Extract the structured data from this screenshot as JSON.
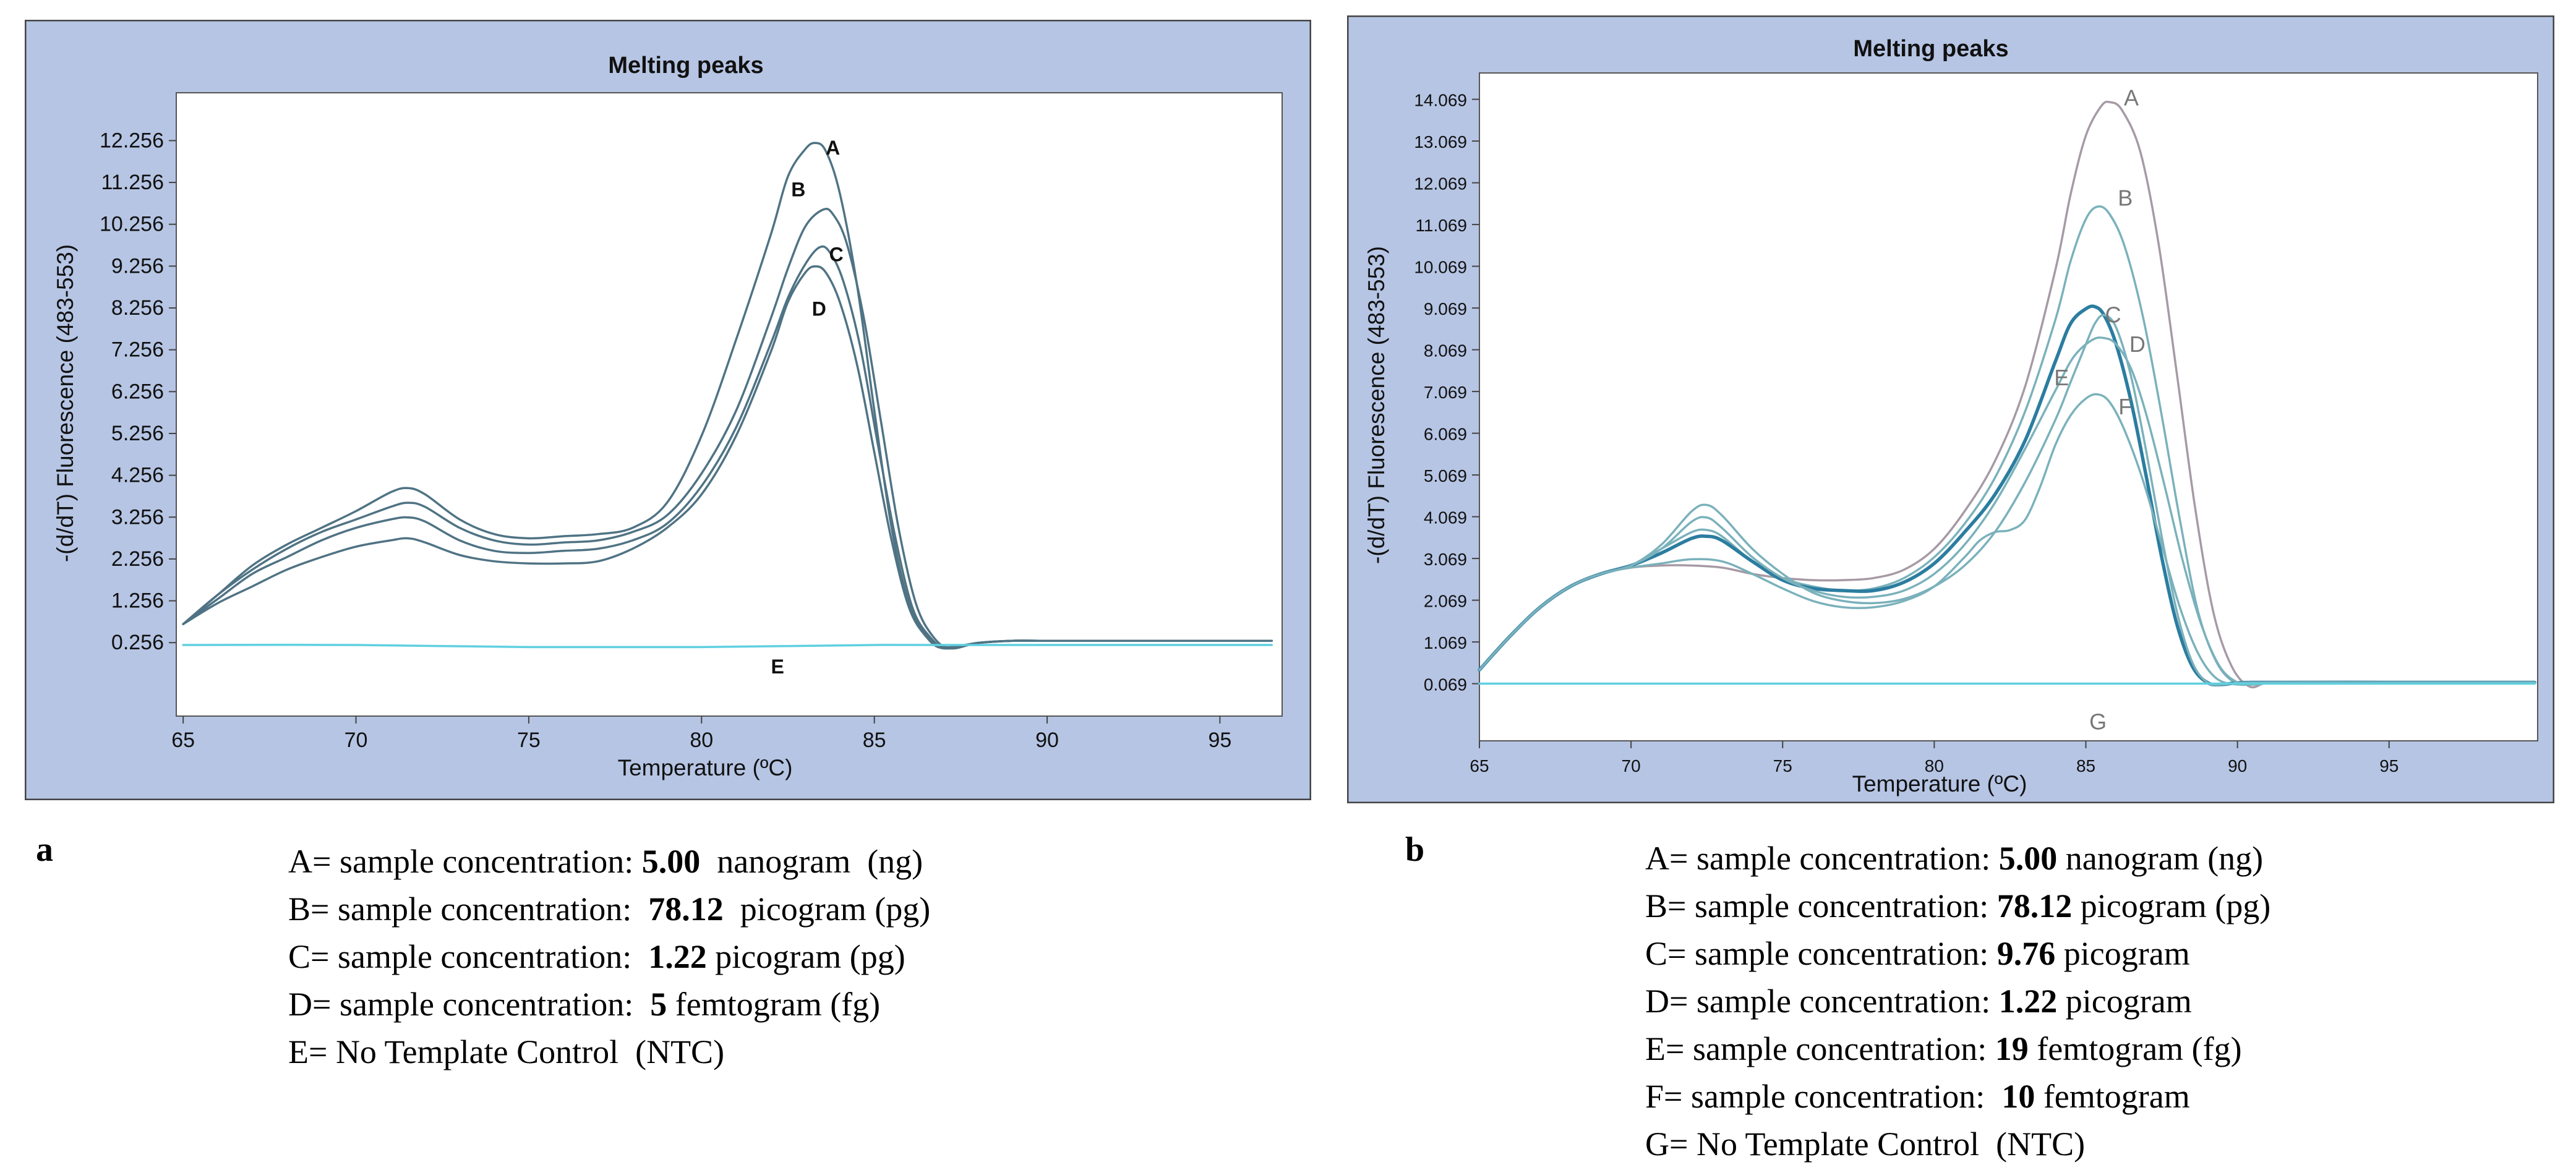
{
  "figure": {
    "panel_a_letter": "a",
    "panel_b_letter": "b"
  },
  "colors": {
    "panel_bg": "#b6c5e4",
    "plot_bg": "#ffffff",
    "curve_a": "#4f7384",
    "curve_ntc": "#5fd0e0",
    "curve_b_a": "#a69aa5",
    "curve_b": "#7ab1bb",
    "curve_b_dark": "#2b7da0"
  },
  "chart_data": [
    {
      "type": "line",
      "title": "Melting peaks",
      "xlabel": "Temperature (ºC)",
      "ylabel": "-(d/dT) Fluorescence (483-553)",
      "xlim": [
        64.8,
        96.8
      ],
      "ylim": [
        -1.5,
        13.4
      ],
      "xticks": [
        "65",
        "70",
        "75",
        "80",
        "85",
        "90",
        "95"
      ],
      "xtick_values": [
        65,
        70,
        75,
        80,
        85,
        90,
        95
      ],
      "yticks": [
        "0.256",
        "1.256",
        "2.256",
        "3.256",
        "4.256",
        "5.256",
        "6.256",
        "7.256",
        "8.256",
        "9.256",
        "10.256",
        "11.256",
        "12.256"
      ],
      "ytick_values": [
        0.256,
        1.256,
        2.256,
        3.256,
        4.256,
        5.256,
        6.256,
        7.256,
        8.256,
        9.256,
        10.256,
        11.256,
        12.256
      ],
      "series": [
        {
          "name": "A",
          "label_at": [
            83.8,
            12.1
          ],
          "color_key": "curve_a",
          "x": [
            65,
            66,
            67,
            68,
            69,
            70,
            71,
            71.5,
            72,
            73,
            74,
            75,
            76,
            77,
            78,
            79,
            80,
            81,
            82,
            82.5,
            83,
            83.3,
            83.6,
            84,
            84.5,
            85,
            85.5,
            86,
            86.5,
            87,
            88,
            89,
            90,
            92,
            95,
            96.5
          ],
          "y": [
            0.7,
            1.4,
            2.1,
            2.6,
            3.0,
            3.4,
            3.85,
            3.95,
            3.8,
            3.2,
            2.85,
            2.75,
            2.8,
            2.85,
            3.0,
            3.6,
            5.2,
            7.5,
            10.0,
            11.4,
            12.05,
            12.2,
            12.0,
            11.0,
            8.8,
            5.8,
            3.0,
            1.2,
            0.45,
            0.15,
            0.25,
            0.3,
            0.3,
            0.3,
            0.3,
            0.3
          ]
        },
        {
          "name": "B",
          "label_at": [
            82.8,
            11.1
          ],
          "color_key": "curve_a",
          "x": [
            65,
            66,
            67,
            68,
            69,
            70,
            71,
            71.5,
            72,
            73,
            74,
            75,
            76,
            77,
            78,
            79,
            80,
            81,
            82,
            82.5,
            83,
            83.5,
            83.8,
            84.2,
            84.7,
            85.2,
            85.7,
            86.2,
            86.7,
            87.2,
            88,
            89,
            90,
            92,
            95,
            96.5
          ],
          "y": [
            0.7,
            1.4,
            2.0,
            2.5,
            2.9,
            3.2,
            3.5,
            3.6,
            3.5,
            3.0,
            2.7,
            2.6,
            2.65,
            2.7,
            2.9,
            3.3,
            4.3,
            5.8,
            8.0,
            9.2,
            10.2,
            10.6,
            10.5,
            9.8,
            8.0,
            5.5,
            3.0,
            1.2,
            0.4,
            0.12,
            0.25,
            0.3,
            0.3,
            0.3,
            0.3,
            0.3
          ]
        },
        {
          "name": "C",
          "label_at": [
            83.9,
            9.55
          ],
          "color_key": "curve_a",
          "x": [
            65,
            66,
            67,
            68,
            69,
            70,
            71,
            71.5,
            72,
            73,
            74,
            75,
            76,
            77,
            78,
            79,
            80,
            81,
            82,
            82.5,
            83,
            83.4,
            83.7,
            84.1,
            84.6,
            85.1,
            85.6,
            86.1,
            86.6,
            87.1,
            88,
            89,
            90,
            92,
            95,
            96.5
          ],
          "y": [
            0.7,
            1.3,
            1.9,
            2.3,
            2.7,
            3.0,
            3.2,
            3.25,
            3.15,
            2.7,
            2.45,
            2.4,
            2.45,
            2.5,
            2.7,
            3.1,
            4.0,
            5.4,
            7.4,
            8.5,
            9.3,
            9.7,
            9.6,
            8.9,
            7.3,
            5.0,
            2.8,
            1.1,
            0.4,
            0.12,
            0.25,
            0.3,
            0.3,
            0.3,
            0.3,
            0.3
          ]
        },
        {
          "name": "D",
          "label_at": [
            83.4,
            8.25
          ],
          "color_key": "curve_a",
          "x": [
            65,
            66,
            67,
            68,
            69,
            70,
            71,
            71.5,
            72,
            73,
            74,
            75,
            76,
            77,
            78,
            79,
            80,
            81,
            82,
            82.5,
            83,
            83.3,
            83.6,
            84,
            84.5,
            85,
            85.5,
            86,
            86.5,
            87,
            88,
            89,
            90,
            92,
            95,
            96.5
          ],
          "y": [
            0.7,
            1.2,
            1.6,
            2.0,
            2.3,
            2.55,
            2.7,
            2.75,
            2.65,
            2.35,
            2.2,
            2.15,
            2.15,
            2.2,
            2.5,
            3.0,
            3.8,
            5.2,
            7.2,
            8.4,
            9.1,
            9.25,
            9.1,
            8.4,
            6.9,
            4.8,
            2.7,
            1.1,
            0.4,
            0.12,
            0.25,
            0.3,
            0.3,
            0.3,
            0.3,
            0.3
          ]
        },
        {
          "name": "E",
          "label_at": [
            82.2,
            -0.3
          ],
          "color_key": "curve_ntc",
          "x": [
            65,
            70,
            75,
            80,
            85,
            90,
            95,
            96.5
          ],
          "y": [
            0.2,
            0.2,
            0.15,
            0.15,
            0.2,
            0.2,
            0.2,
            0.2
          ]
        }
      ]
    },
    {
      "type": "line",
      "title": "Melting peaks",
      "xlabel": "Temperature (ºC)",
      "ylabel": "-(d/dT) Fluorescence (483-553)",
      "xlim": [
        65,
        99.9
      ],
      "ylim": [
        -1.3,
        14.7
      ],
      "xticks": [
        "65",
        "70",
        "75",
        "80",
        "85",
        "90",
        "95"
      ],
      "xtick_values": [
        65,
        70,
        75,
        80,
        85,
        90,
        95
      ],
      "yticks": [
        "0.069",
        "1.069",
        "2.069",
        "3.069",
        "4.069",
        "5.069",
        "6.069",
        "7.069",
        "8.069",
        "9.069",
        "10.069",
        "11.069",
        "12.069",
        "13.069",
        "14.069"
      ],
      "ytick_values": [
        0.069,
        1.069,
        2.069,
        3.069,
        4.069,
        5.069,
        6.069,
        7.069,
        8.069,
        9.069,
        10.069,
        11.069,
        12.069,
        13.069,
        14.069
      ],
      "series": [
        {
          "name": "A",
          "label_at": [
            86.5,
            14.1
          ],
          "color_key": "curve_b_a",
          "x": [
            65,
            66,
            67,
            68,
            69,
            70,
            71,
            72,
            73,
            74,
            75,
            76,
            77,
            78,
            79,
            80,
            81,
            82,
            83,
            84,
            84.5,
            85,
            85.5,
            85.8,
            86.2,
            86.8,
            87.4,
            88,
            88.6,
            89.2,
            89.8,
            90.4,
            91,
            92,
            95,
            99.8
          ],
          "y": [
            0.4,
            1.2,
            1.9,
            2.4,
            2.7,
            2.85,
            2.9,
            2.9,
            2.85,
            2.7,
            2.6,
            2.55,
            2.55,
            2.6,
            2.8,
            3.3,
            4.2,
            5.4,
            7.2,
            10.0,
            11.8,
            13.2,
            13.9,
            14.0,
            13.8,
            12.8,
            10.6,
            7.5,
            4.3,
            1.8,
            0.5,
            0.0,
            0.1,
            0.1,
            0.1,
            0.1
          ]
        },
        {
          "name": "B",
          "label_at": [
            86.3,
            11.7
          ],
          "color_key": "curve_b",
          "x": [
            65,
            66,
            67,
            68,
            69,
            70,
            71,
            72,
            72.5,
            73,
            74,
            75,
            76,
            77,
            78,
            79,
            80,
            81,
            82,
            83,
            84,
            84.5,
            85,
            85.4,
            85.8,
            86.3,
            86.9,
            87.5,
            88.1,
            88.7,
            89.3,
            89.9,
            90.5,
            91.5,
            95,
            99.8
          ],
          "y": [
            0.4,
            1.2,
            1.9,
            2.4,
            2.7,
            2.9,
            3.3,
            3.7,
            3.75,
            3.6,
            3.0,
            2.6,
            2.4,
            2.3,
            2.35,
            2.6,
            3.1,
            3.9,
            5.0,
            6.6,
            8.8,
            10.2,
            11.2,
            11.5,
            11.3,
            10.5,
            8.8,
            6.5,
            4.0,
            1.8,
            0.6,
            0.1,
            0.05,
            0.1,
            0.1,
            0.1
          ]
        },
        {
          "name": "C",
          "label_at": [
            85.9,
            8.9
          ],
          "color_key": "curve_b_dark",
          "x": [
            65,
            66,
            67,
            68,
            69,
            70,
            71,
            72,
            72.5,
            73,
            74,
            75,
            76,
            77,
            78,
            79,
            80,
            81,
            82,
            83,
            84,
            84.5,
            85,
            85.3,
            85.6,
            86,
            86.5,
            87,
            87.5,
            88,
            88.5,
            89,
            89.5,
            90.5,
            95,
            99.8
          ],
          "y": [
            0.4,
            1.2,
            1.9,
            2.4,
            2.7,
            2.9,
            3.2,
            3.55,
            3.6,
            3.5,
            3.0,
            2.55,
            2.35,
            2.3,
            2.3,
            2.5,
            2.95,
            3.7,
            4.6,
            5.9,
            7.8,
            8.7,
            9.05,
            9.1,
            8.9,
            8.2,
            6.8,
            5.0,
            3.1,
            1.5,
            0.5,
            0.1,
            0.05,
            0.1,
            0.1,
            0.1
          ]
        },
        {
          "name": "D",
          "label_at": [
            86.7,
            8.2
          ],
          "color_key": "curve_b",
          "x": [
            65,
            66,
            67,
            68,
            69,
            70,
            71,
            72,
            72.5,
            73,
            74,
            75,
            76,
            77,
            78,
            79,
            80,
            81,
            82,
            83,
            84,
            84.6,
            85.2,
            85.6,
            86,
            86.5,
            87,
            87.6,
            88.2,
            88.8,
            89.4,
            90,
            90.6,
            91.5,
            95,
            99.8
          ],
          "y": [
            0.4,
            1.2,
            1.9,
            2.4,
            2.7,
            2.9,
            3.3,
            3.95,
            4.05,
            3.8,
            3.1,
            2.6,
            2.3,
            2.15,
            2.15,
            2.3,
            2.7,
            3.4,
            4.4,
            5.7,
            7.1,
            7.9,
            8.3,
            8.35,
            8.2,
            7.6,
            6.5,
            4.8,
            3.0,
            1.5,
            0.5,
            0.1,
            0.05,
            0.1,
            0.1,
            0.1
          ]
        },
        {
          "name": "E",
          "label_at": [
            84.2,
            7.4
          ],
          "color_key": "curve_b",
          "x": [
            65,
            66,
            67,
            68,
            69,
            70,
            71,
            72,
            72.5,
            73,
            74,
            75,
            76,
            77,
            78,
            79,
            80,
            81,
            82,
            83,
            84,
            84.5,
            85,
            85.3,
            85.6,
            86,
            86.5,
            87,
            87.5,
            88,
            88.5,
            89,
            89.5,
            90.5,
            95,
            99.8
          ],
          "y": [
            0.4,
            1.2,
            1.9,
            2.4,
            2.7,
            2.9,
            3.4,
            4.2,
            4.35,
            4.1,
            3.3,
            2.7,
            2.25,
            2.05,
            2.0,
            2.1,
            2.4,
            2.9,
            3.7,
            4.9,
            6.4,
            7.3,
            8.2,
            8.7,
            8.9,
            8.6,
            7.4,
            5.6,
            3.6,
            1.8,
            0.6,
            0.1,
            0.05,
            0.1,
            0.1,
            0.1
          ]
        },
        {
          "name": "F",
          "label_at": [
            86.3,
            6.7
          ],
          "color_key": "curve_b",
          "x": [
            65,
            66,
            67,
            68,
            69,
            70,
            71,
            72,
            73,
            74,
            75,
            76,
            77,
            78,
            79,
            80,
            81,
            81.5,
            82,
            82.5,
            83,
            83.5,
            84,
            84.5,
            85,
            85.4,
            85.8,
            86.3,
            86.9,
            87.5,
            88.1,
            88.7,
            89.3,
            90,
            91,
            95,
            99.8
          ],
          "y": [
            0.4,
            1.2,
            1.9,
            2.4,
            2.7,
            2.85,
            2.95,
            3.05,
            3.0,
            2.7,
            2.35,
            2.05,
            1.9,
            1.9,
            2.05,
            2.4,
            3.1,
            3.5,
            3.7,
            3.75,
            4.0,
            4.8,
            5.8,
            6.5,
            6.9,
            7.0,
            6.8,
            6.1,
            4.9,
            3.4,
            1.9,
            0.8,
            0.2,
            0.05,
            0.1,
            0.1,
            0.1
          ]
        },
        {
          "name": "G",
          "label_at": [
            85.4,
            -0.85
          ],
          "color_key": "curve_ntc",
          "x": [
            65,
            70,
            75,
            80,
            85,
            90,
            95,
            99.8
          ],
          "y": [
            0.07,
            0.07,
            0.07,
            0.07,
            0.07,
            0.07,
            0.07,
            0.07
          ]
        }
      ]
    }
  ],
  "legend_a": [
    {
      "pre": "A= sample concentration: ",
      "value": "5.00",
      "post": "  nanogram  (ng)"
    },
    {
      "pre": "B= sample concentration:  ",
      "value": "78.12",
      "post": "  picogram (pg)"
    },
    {
      "pre": "C= sample concentration:  ",
      "value": "1.22",
      "post": " picogram (pg)"
    },
    {
      "pre": "D= sample concentration:  ",
      "value": "5",
      "post": " femtogram (fg)"
    },
    {
      "pre": "E= No Template Control  (NTC)",
      "value": "",
      "post": ""
    }
  ],
  "legend_b": [
    {
      "pre": "A= sample concentration: ",
      "value": "5.00",
      "post": " nanogram (ng)"
    },
    {
      "pre": "B= sample concentration: ",
      "value": "78.12",
      "post": " picogram (pg)"
    },
    {
      "pre": "C= sample concentration: ",
      "value": "9.76",
      "post": " picogram"
    },
    {
      "pre": "D= sample concentration: ",
      "value": "1.22",
      "post": " picogram"
    },
    {
      "pre": "E= sample concentration: ",
      "value": "19",
      "post": " femtogram (fg)"
    },
    {
      "pre": "F= sample concentration:  ",
      "value": "10",
      "post": " femtogram"
    },
    {
      "pre": "G= No Template Control  (NTC)",
      "value": "",
      "post": ""
    }
  ]
}
